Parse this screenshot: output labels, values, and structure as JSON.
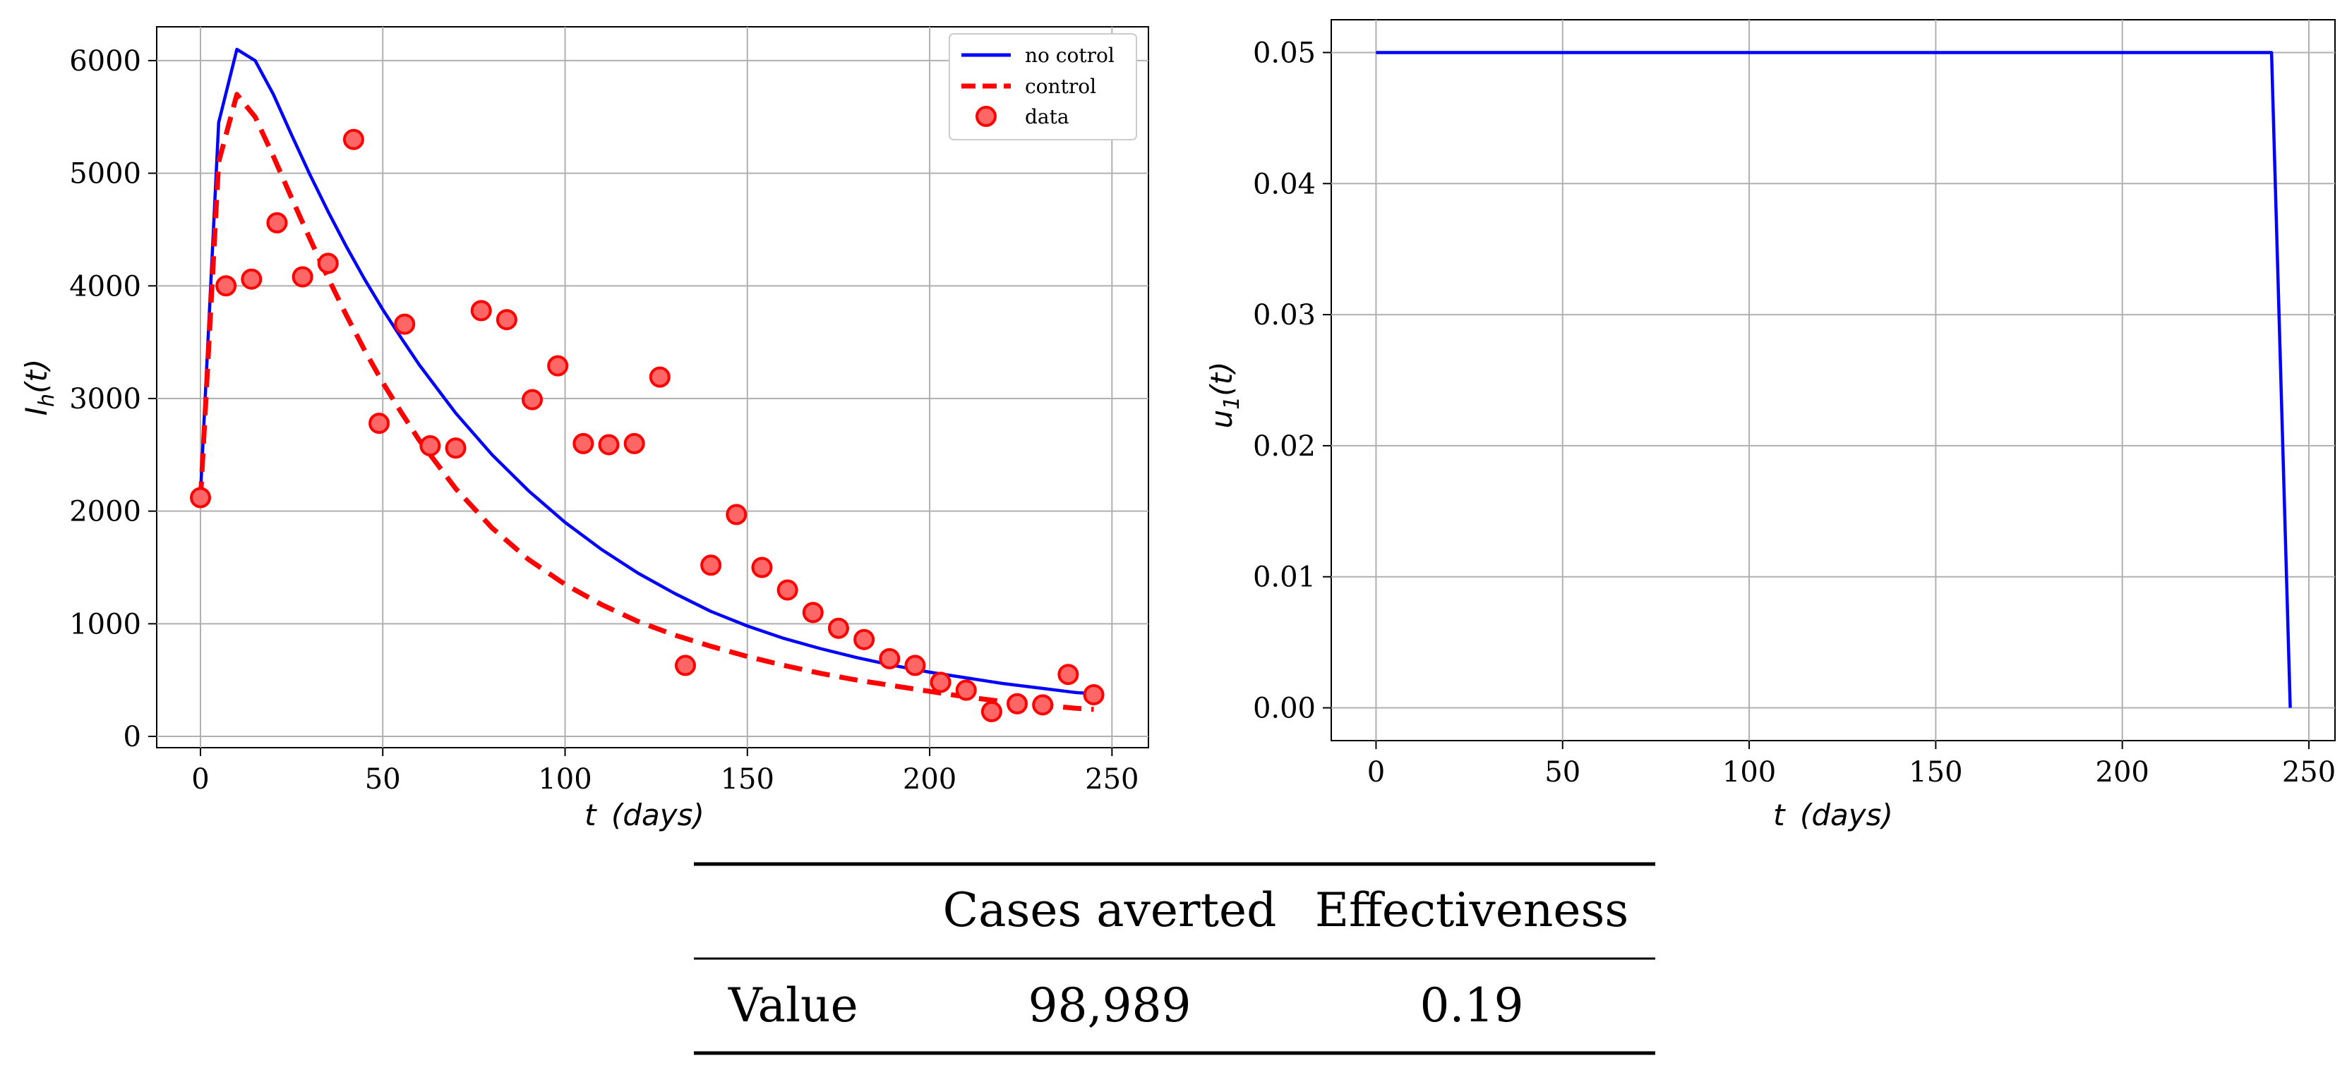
{
  "chart_data": [
    {
      "type": "line",
      "title": "",
      "xlabel_var": "t",
      "xlabel_unit": "(days)",
      "ylabel_var": "I",
      "ylabel_sub": "h",
      "ylabel_arg": "(t)",
      "xlim": [
        -12,
        260
      ],
      "ylim": [
        -100,
        6300
      ],
      "xticks": [
        0,
        50,
        100,
        150,
        200,
        250
      ],
      "yticks": [
        0,
        1000,
        2000,
        3000,
        4000,
        5000,
        6000
      ],
      "grid": true,
      "legend_position": "top-right",
      "series": [
        {
          "name": "no cotrol",
          "style": "solid",
          "color": "#0000ff",
          "x": [
            0,
            5,
            10,
            15,
            20,
            25,
            30,
            35,
            40,
            45,
            50,
            55,
            60,
            70,
            80,
            90,
            100,
            110,
            120,
            130,
            140,
            150,
            160,
            170,
            180,
            190,
            200,
            210,
            220,
            230,
            240,
            245
          ],
          "y": [
            2150,
            5450,
            6100,
            6000,
            5700,
            5340,
            4990,
            4660,
            4350,
            4060,
            3790,
            3540,
            3300,
            2870,
            2500,
            2180,
            1900,
            1660,
            1450,
            1270,
            1110,
            980,
            870,
            780,
            700,
            630,
            570,
            520,
            470,
            430,
            390,
            380
          ]
        },
        {
          "name": "control",
          "style": "dashed",
          "color": "#ff0000",
          "x": [
            0,
            5,
            10,
            15,
            20,
            25,
            30,
            35,
            40,
            45,
            50,
            55,
            60,
            70,
            80,
            90,
            100,
            110,
            120,
            130,
            140,
            150,
            160,
            170,
            180,
            190,
            200,
            210,
            220,
            230,
            240,
            245
          ],
          "y": [
            2100,
            5100,
            5700,
            5500,
            5150,
            4780,
            4420,
            4070,
            3740,
            3430,
            3140,
            2880,
            2630,
            2200,
            1850,
            1570,
            1350,
            1170,
            1020,
            900,
            800,
            710,
            630,
            560,
            500,
            450,
            400,
            350,
            310,
            280,
            250,
            240
          ]
        },
        {
          "name": "data",
          "style": "markers",
          "color": "#ff0000",
          "x": [
            0,
            7,
            14,
            21,
            28,
            35,
            42,
            49,
            56,
            63,
            70,
            77,
            84,
            91,
            98,
            105,
            112,
            119,
            126,
            133,
            140,
            147,
            154,
            161,
            168,
            175,
            182,
            189,
            196,
            203,
            210,
            217,
            224,
            231,
            238,
            245
          ],
          "y": [
            2120,
            4000,
            4060,
            4560,
            4080,
            4200,
            5300,
            2780,
            3660,
            2580,
            2560,
            3780,
            3700,
            2990,
            3290,
            2600,
            2590,
            2600,
            3190,
            630,
            1520,
            1970,
            1500,
            1300,
            1100,
            960,
            860,
            690,
            630,
            480,
            410,
            220,
            290,
            280,
            550,
            370
          ]
        }
      ]
    },
    {
      "type": "line",
      "title": "",
      "xlabel_var": "t",
      "xlabel_unit": "(days)",
      "ylabel_var": "u",
      "ylabel_sub": "1",
      "ylabel_arg": "(t)",
      "xlim": [
        -12,
        257
      ],
      "ylim": [
        -0.0025,
        0.0525
      ],
      "xticks": [
        0,
        50,
        100,
        150,
        200,
        250
      ],
      "yticks": [
        0.0,
        0.01,
        0.02,
        0.03,
        0.04,
        0.05
      ],
      "ytick_labels": [
        "0.00",
        "0.01",
        "0.02",
        "0.03",
        "0.04",
        "0.05"
      ],
      "grid": true,
      "series": [
        {
          "name": "u1",
          "style": "solid",
          "color": "#0000ff",
          "x": [
            0,
            240,
            245
          ],
          "y": [
            0.05,
            0.05,
            0.0
          ]
        }
      ]
    }
  ],
  "table": {
    "headers": [
      "",
      "Cases averted",
      "Effectiveness"
    ],
    "rows": [
      [
        "Value",
        "98,989",
        "0.19"
      ]
    ]
  }
}
